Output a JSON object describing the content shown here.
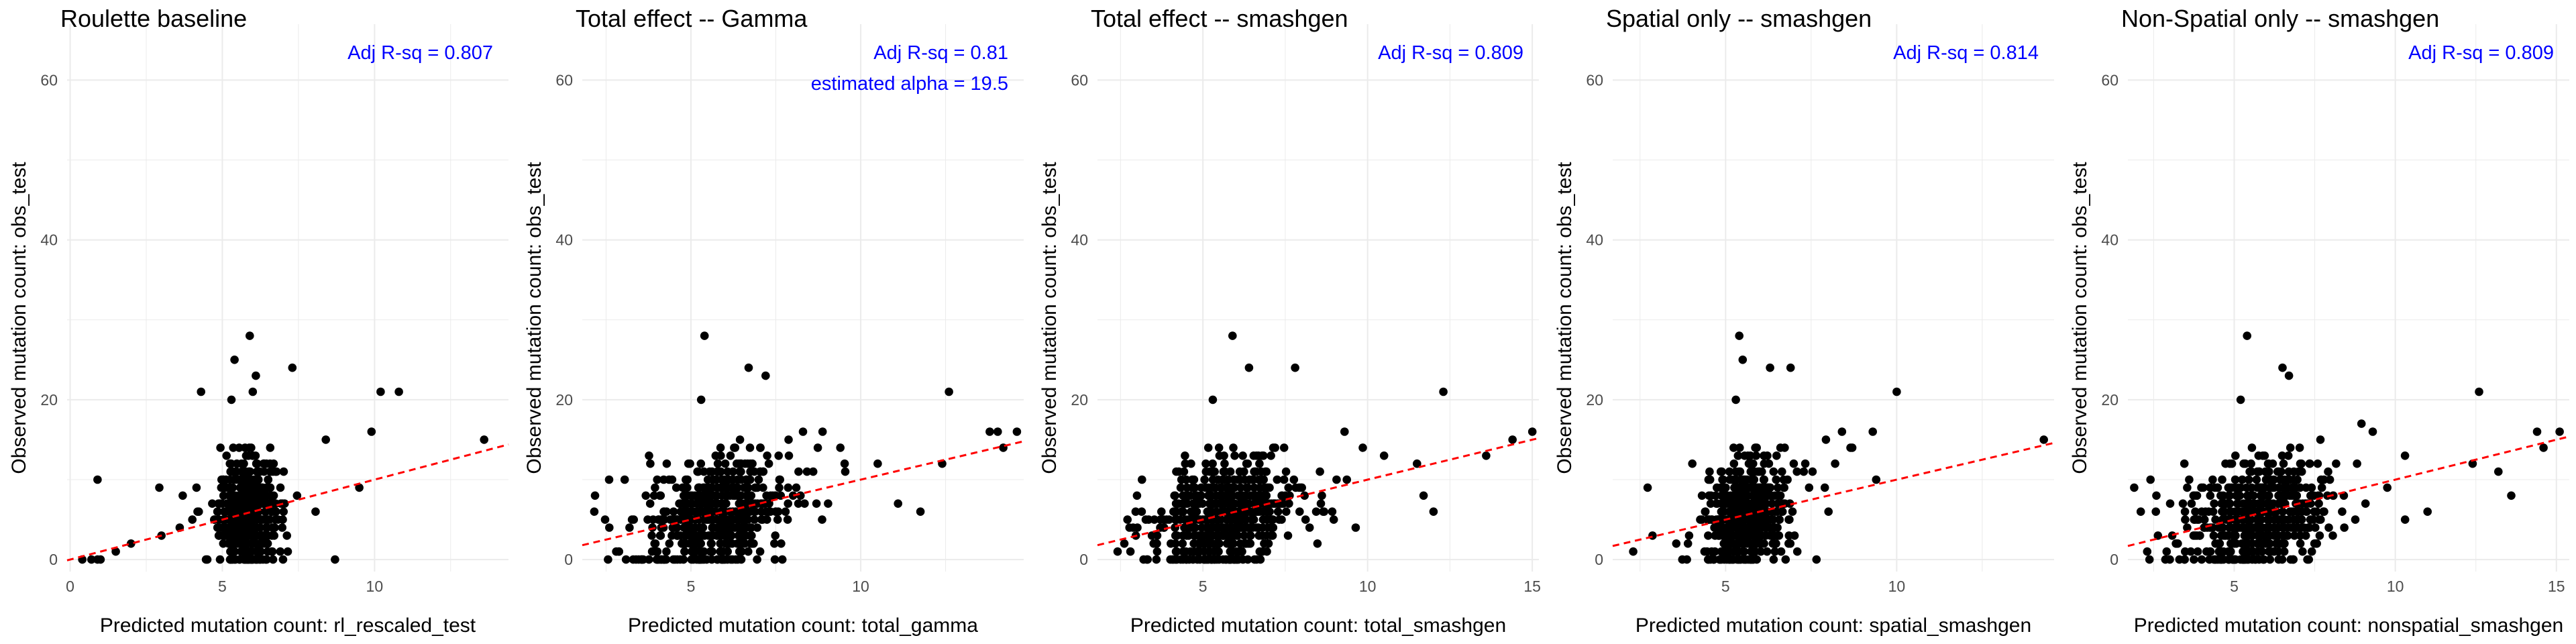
{
  "figure": {
    "background": "#ffffff",
    "point_color": "#000000",
    "line_color": "#ff0000",
    "annotation_color": "#0000ff",
    "grid_color": "#ebebeb",
    "panel_count": 5
  },
  "chart_data": [
    {
      "type": "scatter",
      "title": "Roulette baseline",
      "xlabel": "Predicted mutation count: rl_rescaled_test",
      "ylabel": "Observed mutation count: obs_test",
      "xlim": [
        -0.1,
        14.4
      ],
      "ylim": [
        -1.5,
        67
      ],
      "xticks": [
        0,
        5,
        10
      ],
      "yticks": [
        0,
        20,
        40,
        60
      ],
      "grid": true,
      "fit_line": {
        "style": "dashed",
        "intercept": 0,
        "slope": 1.0
      },
      "annotations": [
        "Adj R-sq = 0.807"
      ],
      "cluster": {
        "x_center": 5.8,
        "x_spread": 0.45,
        "y_mean": 5.8
      },
      "outliers": [
        [
          13.6,
          15
        ],
        [
          10.8,
          21
        ],
        [
          5.9,
          28
        ],
        [
          5.4,
          25
        ],
        [
          6.1,
          23
        ],
        [
          4.3,
          21
        ],
        [
          0.9,
          10
        ],
        [
          5.3,
          20
        ],
        [
          6.0,
          21
        ],
        [
          3.0,
          3
        ],
        [
          2.0,
          2
        ],
        [
          3.6,
          4
        ],
        [
          1.5,
          1
        ],
        [
          7.3,
          24
        ],
        [
          9.5,
          9
        ],
        [
          0.7,
          0
        ],
        [
          0.4,
          0
        ],
        [
          0.9,
          0
        ],
        [
          1.0,
          0
        ],
        [
          9.9,
          16
        ],
        [
          10.2,
          21
        ],
        [
          8.4,
          15
        ]
      ]
    },
    {
      "type": "scatter",
      "title": "Total effect -- Gamma",
      "xlabel": "Predicted mutation count: total_gamma",
      "ylabel": "Observed mutation count: obs_test",
      "xlim": [
        1.8,
        14.8
      ],
      "ylim": [
        -1.5,
        67
      ],
      "xticks": [
        5,
        10
      ],
      "yticks": [
        0,
        20,
        40,
        60
      ],
      "grid": true,
      "fit_line": {
        "style": "dashed",
        "intercept": 0,
        "slope": 1.0
      },
      "annotations": [
        "Adj R-sq = 0.81",
        "estimated alpha = 19.5"
      ],
      "cluster": {
        "x_center": 5.7,
        "x_spread": 1.0,
        "y_mean": 5.6
      },
      "outliers": [
        [
          14.6,
          16
        ],
        [
          13.8,
          16
        ],
        [
          14.2,
          14
        ],
        [
          12.6,
          21
        ],
        [
          5.4,
          28
        ],
        [
          6.7,
          24
        ],
        [
          7.2,
          23
        ],
        [
          5.3,
          20
        ],
        [
          8.3,
          16
        ],
        [
          11.1,
          7
        ],
        [
          10.5,
          12
        ],
        [
          2.8,
          1
        ],
        [
          3.3,
          0
        ],
        [
          4.6,
          0
        ],
        [
          8.6,
          11
        ],
        [
          12.4,
          12
        ],
        [
          9.4,
          14
        ]
      ]
    },
    {
      "type": "scatter",
      "title": "Total effect -- smashgen",
      "xlabel": "Predicted mutation count: total_smashgen",
      "ylabel": "Observed mutation count: obs_test",
      "xlim": [
        1.8,
        15.2
      ],
      "ylim": [
        -1.5,
        67
      ],
      "xticks": [
        5,
        10,
        15
      ],
      "yticks": [
        0,
        20,
        40,
        60
      ],
      "grid": true,
      "fit_line": {
        "style": "dashed",
        "intercept": 0,
        "slope": 1.0
      },
      "annotations": [
        "Adj R-sq = 0.809"
      ],
      "cluster": {
        "x_center": 5.7,
        "x_spread": 1.0,
        "y_mean": 5.6
      },
      "outliers": [
        [
          15.0,
          16
        ],
        [
          14.4,
          15
        ],
        [
          12.3,
          21
        ],
        [
          5.9,
          28
        ],
        [
          6.4,
          24
        ],
        [
          7.8,
          24
        ],
        [
          5.3,
          20
        ],
        [
          9.3,
          16
        ],
        [
          13.6,
          13
        ],
        [
          12.0,
          6
        ],
        [
          11.5,
          12
        ],
        [
          2.8,
          1
        ],
        [
          3.3,
          0
        ],
        [
          4.5,
          0
        ],
        [
          10.5,
          13
        ],
        [
          11.7,
          8
        ]
      ]
    },
    {
      "type": "scatter",
      "title": "Spatial only -- smashgen",
      "xlabel": "Predicted mutation count: spatial_smashgen",
      "ylabel": "Observed mutation count: obs_test",
      "xlim": [
        1.7,
        14.6
      ],
      "ylim": [
        -1.5,
        67
      ],
      "xticks": [
        5,
        10
      ],
      "yticks": [
        0,
        20,
        40,
        60
      ],
      "grid": true,
      "fit_line": {
        "style": "dashed",
        "intercept": 0,
        "slope": 1.0
      },
      "annotations": [
        "Adj R-sq = 0.814"
      ],
      "cluster": {
        "x_center": 5.6,
        "x_spread": 0.55,
        "y_mean": 5.8
      },
      "outliers": [
        [
          14.3,
          15
        ],
        [
          10.0,
          21
        ],
        [
          5.4,
          28
        ],
        [
          6.3,
          24
        ],
        [
          5.5,
          25
        ],
        [
          6.9,
          24
        ],
        [
          5.3,
          20
        ],
        [
          9.3,
          16
        ],
        [
          8.7,
          14
        ],
        [
          2.3,
          1
        ],
        [
          3.9,
          2
        ],
        [
          4.5,
          0
        ],
        [
          8.2,
          12
        ],
        [
          7.9,
          9
        ],
        [
          9.4,
          10
        ],
        [
          8.4,
          16
        ]
      ]
    },
    {
      "type": "scatter",
      "title": "Non-Spatial only -- smashgen",
      "xlabel": "Predicted mutation count: nonspatial_smashgen",
      "ylabel": "Observed mutation count: obs_test",
      "xlim": [
        1.7,
        15.4
      ],
      "ylim": [
        -1.5,
        67
      ],
      "xticks": [
        5,
        10,
        15
      ],
      "yticks": [
        0,
        20,
        40,
        60
      ],
      "grid": true,
      "fit_line": {
        "style": "dashed",
        "intercept": 0,
        "slope": 1.0
      },
      "annotations": [
        "Adj R-sq = 0.809"
      ],
      "cluster": {
        "x_center": 5.7,
        "x_spread": 1.0,
        "y_mean": 5.6
      },
      "outliers": [
        [
          15.1,
          16
        ],
        [
          14.4,
          16
        ],
        [
          14.6,
          14
        ],
        [
          12.6,
          21
        ],
        [
          5.4,
          28
        ],
        [
          6.5,
          24
        ],
        [
          6.7,
          23
        ],
        [
          5.2,
          20
        ],
        [
          9.3,
          16
        ],
        [
          13.2,
          11
        ],
        [
          13.6,
          8
        ],
        [
          12.4,
          12
        ],
        [
          2.3,
          1
        ],
        [
          3.3,
          0
        ],
        [
          4.6,
          0
        ],
        [
          10.3,
          13
        ],
        [
          11.0,
          6
        ]
      ]
    }
  ]
}
